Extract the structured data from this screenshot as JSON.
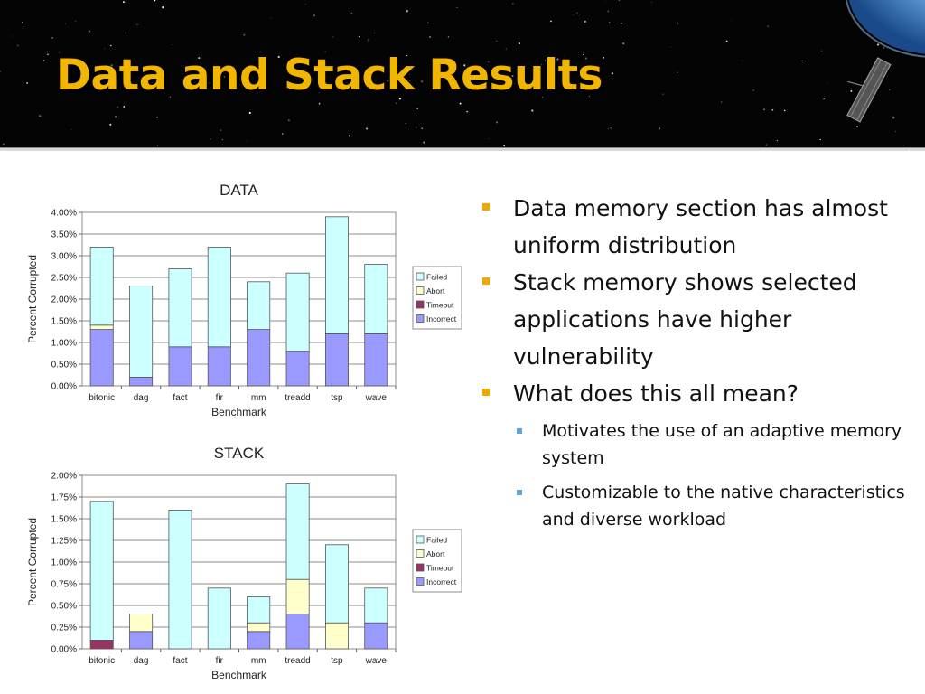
{
  "slide": {
    "title": "Data and Stack Results"
  },
  "bullets": [
    {
      "text": "Data memory section has almost uniform distribution",
      "level": 1
    },
    {
      "text": "Stack memory shows selected applications have higher vulnerability",
      "level": 1
    },
    {
      "text": "What does this all mean?",
      "level": 1,
      "children": [
        {
          "text": "Motivates the use of an adaptive memory system",
          "level": 2
        },
        {
          "text": "Customizable to the native characteristics and diverse workload",
          "level": 2
        }
      ]
    }
  ],
  "colors": {
    "title": "#f2b600",
    "bullet_l1": "#f0a800",
    "bullet_l2": "#5da8d8",
    "Failed": "#ccffff",
    "Abort": "#ffffcc",
    "Timeout": "#993366",
    "Incorrect": "#9999ff"
  },
  "chart_data": [
    {
      "type": "bar",
      "stacked": true,
      "title": "DATA",
      "xlabel": "Benchmark",
      "ylabel": "Percent Corrupted",
      "ylim": [
        0,
        4
      ],
      "yticks": [
        "0.00%",
        "0.50%",
        "1.00%",
        "1.50%",
        "2.00%",
        "2.50%",
        "3.00%",
        "3.50%",
        "4.00%"
      ],
      "categories": [
        "bitonic",
        "dag",
        "fact",
        "fir",
        "mm",
        "treadd",
        "tsp",
        "wave"
      ],
      "legend_position": "right",
      "grid": true,
      "series": [
        {
          "name": "Incorrect",
          "values": [
            1.3,
            0.2,
            0.9,
            0.9,
            1.3,
            0.8,
            1.2,
            1.2
          ]
        },
        {
          "name": "Timeout",
          "values": [
            0,
            0,
            0,
            0,
            0,
            0,
            0,
            0
          ]
        },
        {
          "name": "Abort",
          "values": [
            0.1,
            0,
            0,
            0,
            0,
            0,
            0,
            0
          ]
        },
        {
          "name": "Failed",
          "values": [
            1.8,
            2.1,
            1.8,
            2.3,
            1.1,
            1.8,
            2.7,
            1.6
          ]
        }
      ]
    },
    {
      "type": "bar",
      "stacked": true,
      "title": "STACK",
      "xlabel": "Benchmark",
      "ylabel": "Percent Corrupted",
      "ylim": [
        0,
        2
      ],
      "yticks": [
        "0.00%",
        "0.25%",
        "0.50%",
        "0.75%",
        "1.00%",
        "1.25%",
        "1.50%",
        "1.75%",
        "2.00%"
      ],
      "categories": [
        "bitonic",
        "dag",
        "fact",
        "fir",
        "mm",
        "treadd",
        "tsp",
        "wave"
      ],
      "legend_position": "right",
      "grid": true,
      "series": [
        {
          "name": "Incorrect",
          "values": [
            0,
            0.2,
            0,
            0,
            0.2,
            0.4,
            0,
            0.3
          ]
        },
        {
          "name": "Timeout",
          "values": [
            0.1,
            0,
            0,
            0,
            0,
            0,
            0,
            0
          ]
        },
        {
          "name": "Abort",
          "values": [
            0,
            0.2,
            0,
            0,
            0.1,
            0.4,
            0.3,
            0
          ]
        },
        {
          "name": "Failed",
          "values": [
            1.6,
            0,
            1.6,
            0.7,
            0.3,
            1.1,
            0.9,
            0.4
          ]
        }
      ]
    }
  ]
}
